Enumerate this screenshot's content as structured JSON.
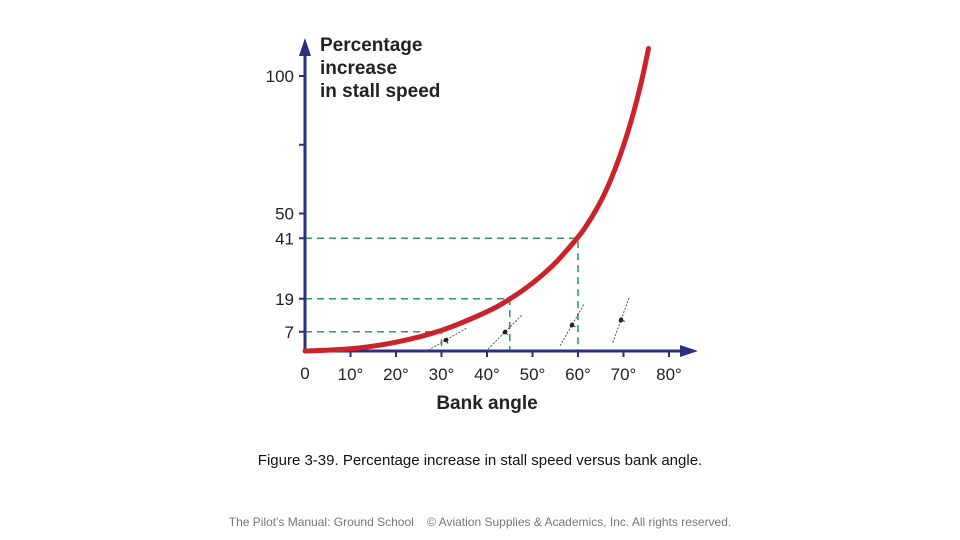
{
  "chart_data": {
    "type": "line",
    "ylabel_lines": [
      "Percentage",
      "increase",
      "in stall speed"
    ],
    "xlabel": "Bank angle",
    "origin_label": "0",
    "x_ticks": [
      {
        "value": 10,
        "label": "10°"
      },
      {
        "value": 20,
        "label": "20°"
      },
      {
        "value": 30,
        "label": "30°"
      },
      {
        "value": 40,
        "label": "40°"
      },
      {
        "value": 50,
        "label": "50°"
      },
      {
        "value": 60,
        "label": "60°"
      },
      {
        "value": 70,
        "label": "70°"
      },
      {
        "value": 80,
        "label": "80°"
      }
    ],
    "y_ticks": [
      {
        "value": 7,
        "label": "7"
      },
      {
        "value": 19,
        "label": "19"
      },
      {
        "value": 41,
        "label": "41"
      },
      {
        "value": 50,
        "label": "50"
      },
      {
        "value": 75,
        "label": ""
      },
      {
        "value": 100,
        "label": "100"
      }
    ],
    "xlim": [
      0,
      85
    ],
    "ylim": [
      0,
      115
    ],
    "series": [
      {
        "x": [
          0,
          10,
          20,
          30,
          40,
          45,
          50,
          55,
          60,
          62,
          64,
          66,
          68,
          70,
          72,
          74,
          75.5
        ],
        "values": [
          0,
          0.8,
          3.2,
          7.5,
          14.3,
          18.9,
          24.7,
          32.0,
          41.4,
          46.0,
          51.4,
          57.8,
          65.6,
          74.7,
          85.5,
          98.4,
          110
        ]
      }
    ],
    "reference_points": [
      {
        "x": 30,
        "y": 7
      },
      {
        "x": 45,
        "y": 19
      },
      {
        "x": 60,
        "y": 41
      }
    ],
    "colors": {
      "curve": "#cc2229",
      "axis": "#2a2f7f",
      "reference": "#2e9e5b"
    }
  },
  "caption": {
    "figure_number": "Figure 3-39.",
    "text": "Percentage increase in stall speed versus bank angle."
  },
  "footer": {
    "book": "The Pilot's Manual: Ground School",
    "copyright": "© Aviation Supplies & Academics, Inc. All rights reserved."
  }
}
